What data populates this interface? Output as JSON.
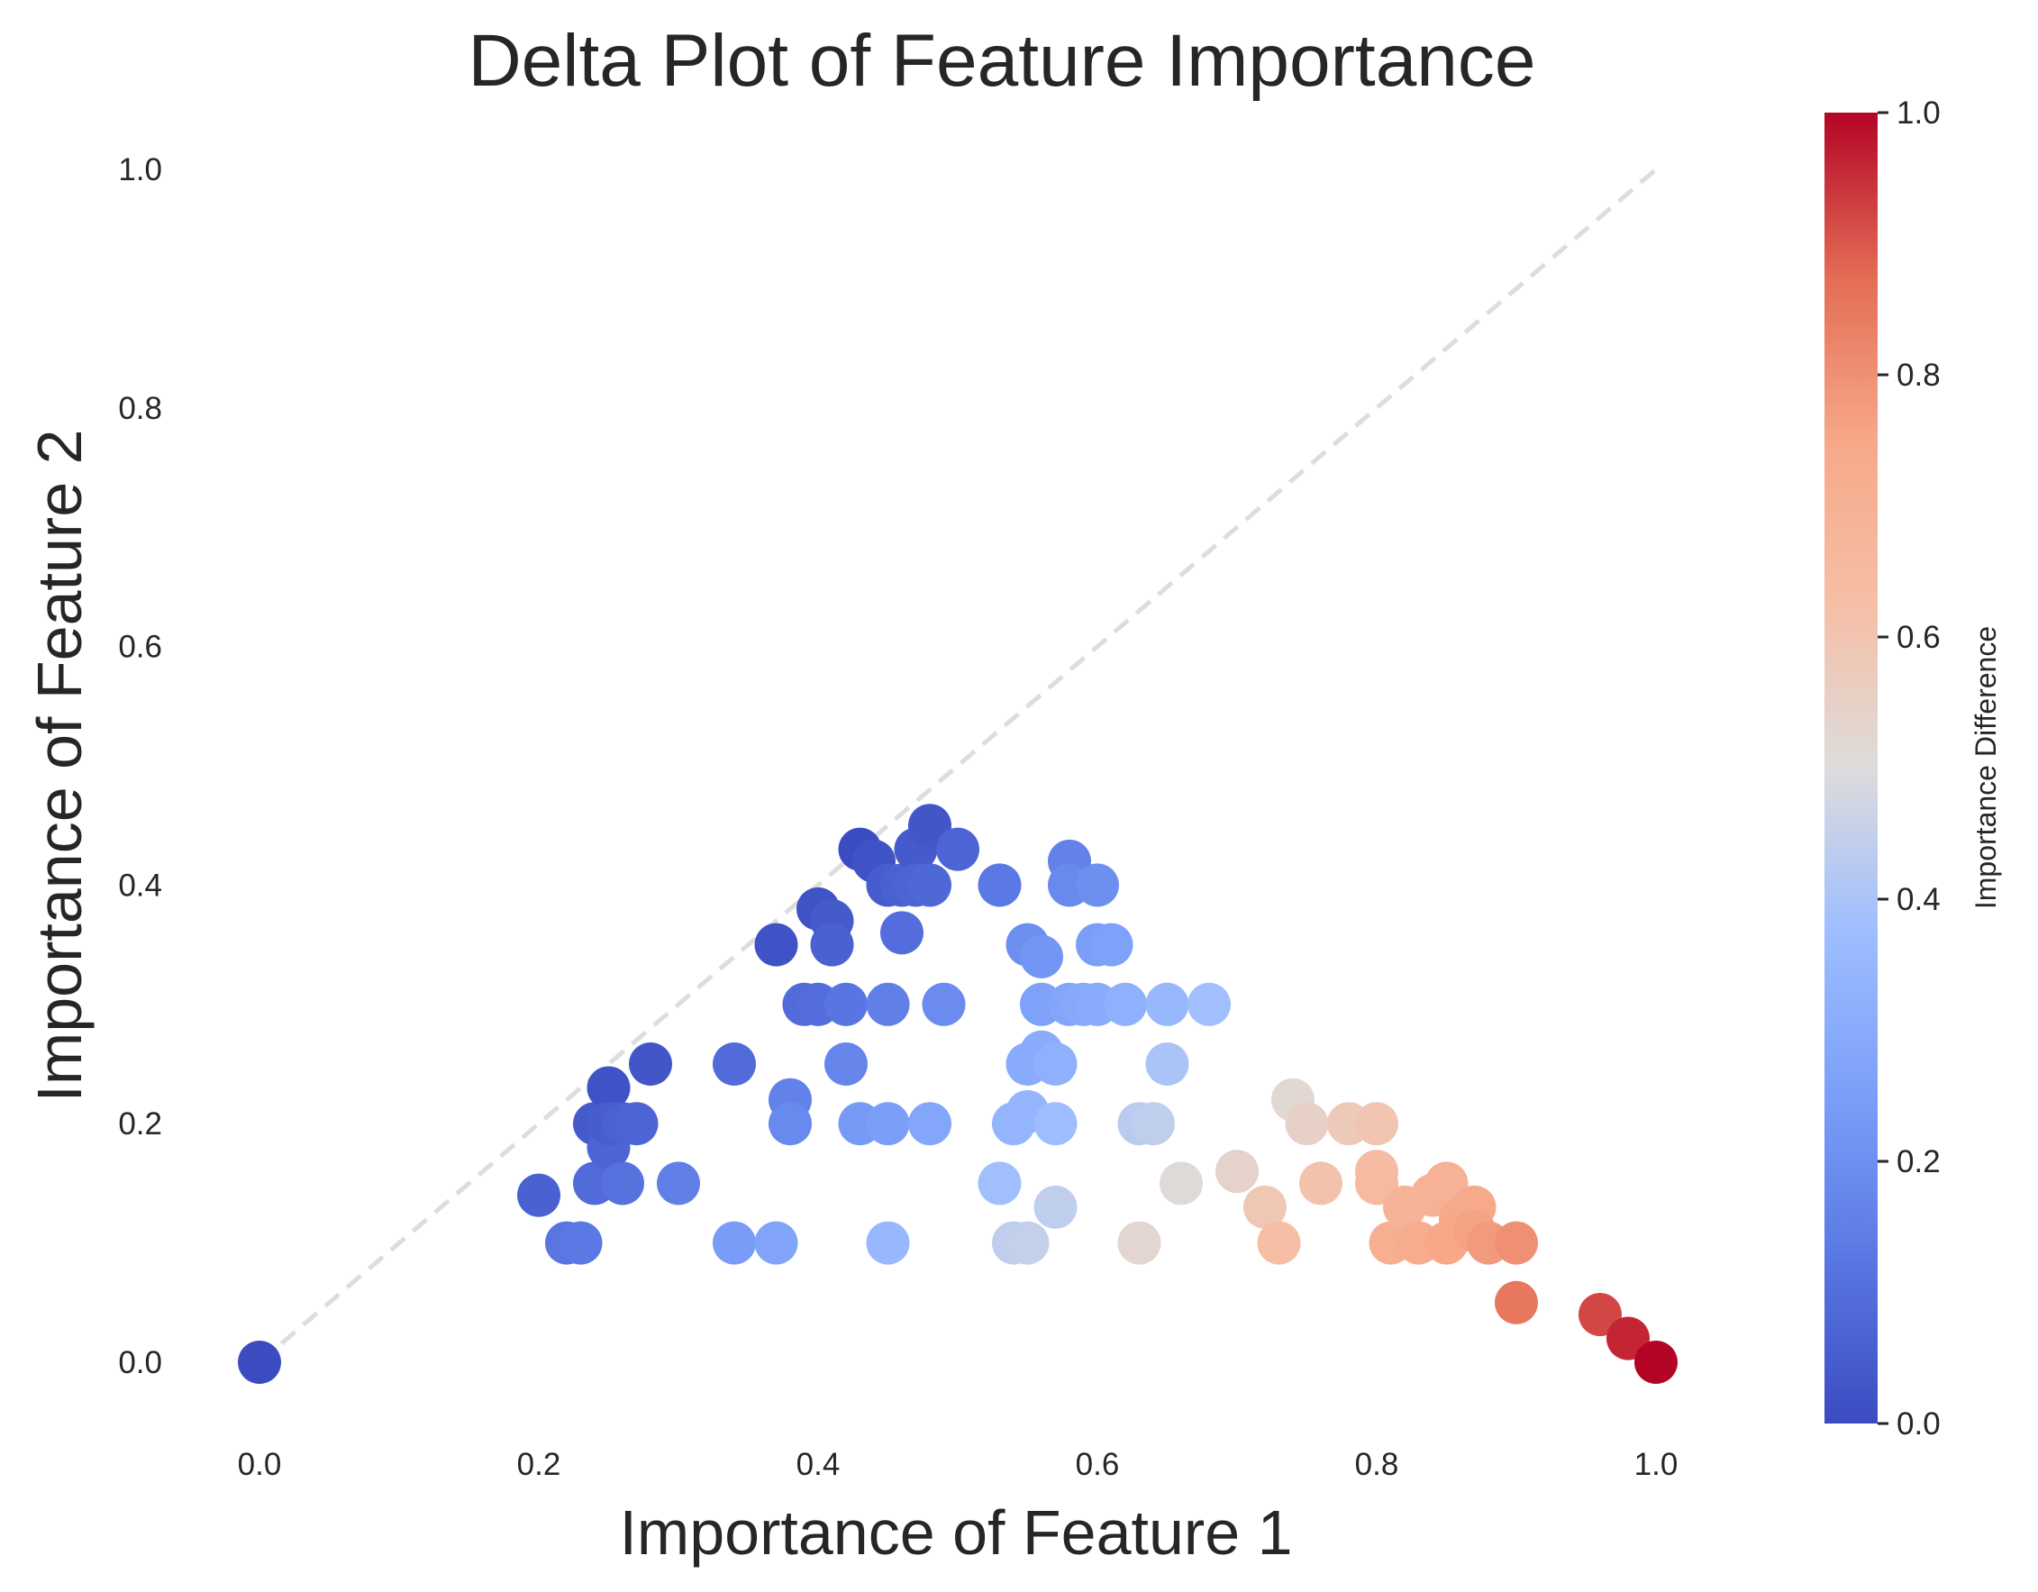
{
  "chart_data": {
    "type": "scatter",
    "title": "Delta Plot of Feature Importance",
    "xlabel": "Importance of Feature 1",
    "ylabel": "Importance of Feature 2",
    "xlim": [
      -0.05,
      1.05
    ],
    "ylim": [
      -0.05,
      1.05
    ],
    "xticks": [
      "0.0",
      "0.2",
      "0.4",
      "0.6",
      "0.8",
      "1.0"
    ],
    "yticks": [
      "0.0",
      "0.2",
      "0.4",
      "0.6",
      "0.8",
      "1.0"
    ],
    "grid": false,
    "reference_line": {
      "from": [
        0,
        0
      ],
      "to": [
        1,
        1
      ],
      "style": "dashed",
      "color": "#dddddd"
    },
    "colorbar": {
      "label": "Importance Difference",
      "colormap": "coolwarm",
      "range": [
        0,
        1
      ],
      "ticks": [
        "0.0",
        "0.2",
        "0.4",
        "0.6",
        "0.8",
        "1.0"
      ]
    },
    "x": [
      0.0,
      0.2,
      0.22,
      0.23,
      0.24,
      0.24,
      0.25,
      0.25,
      0.25,
      0.26,
      0.26,
      0.27,
      0.28,
      0.3,
      0.34,
      0.34,
      0.37,
      0.37,
      0.38,
      0.38,
      0.39,
      0.4,
      0.4,
      0.41,
      0.41,
      0.42,
      0.42,
      0.43,
      0.43,
      0.44,
      0.45,
      0.45,
      0.45,
      0.45,
      0.46,
      0.46,
      0.47,
      0.47,
      0.48,
      0.48,
      0.48,
      0.49,
      0.5,
      0.53,
      0.53,
      0.54,
      0.54,
      0.55,
      0.55,
      0.55,
      0.55,
      0.56,
      0.56,
      0.56,
      0.57,
      0.57,
      0.57,
      0.58,
      0.58,
      0.58,
      0.59,
      0.6,
      0.6,
      0.6,
      0.61,
      0.62,
      0.63,
      0.63,
      0.64,
      0.65,
      0.65,
      0.66,
      0.68,
      0.7,
      0.72,
      0.73,
      0.74,
      0.75,
      0.76,
      0.78,
      0.8,
      0.8,
      0.8,
      0.81,
      0.82,
      0.83,
      0.84,
      0.85,
      0.85,
      0.86,
      0.86,
      0.87,
      0.87,
      0.88,
      0.9,
      0.9,
      0.96,
      0.98,
      1.0
    ],
    "y": [
      0.0,
      0.14,
      0.1,
      0.1,
      0.15,
      0.2,
      0.23,
      0.18,
      0.2,
      0.15,
      0.2,
      0.2,
      0.25,
      0.15,
      0.25,
      0.1,
      0.35,
      0.1,
      0.22,
      0.2,
      0.3,
      0.38,
      0.3,
      0.37,
      0.35,
      0.3,
      0.25,
      0.43,
      0.2,
      0.42,
      0.4,
      0.3,
      0.2,
      0.1,
      0.4,
      0.36,
      0.43,
      0.4,
      0.45,
      0.4,
      0.2,
      0.3,
      0.43,
      0.4,
      0.15,
      0.2,
      0.1,
      0.35,
      0.25,
      0.21,
      0.1,
      0.34,
      0.3,
      0.26,
      0.25,
      0.2,
      0.13,
      0.42,
      0.4,
      0.3,
      0.3,
      0.4,
      0.35,
      0.3,
      0.35,
      0.3,
      0.2,
      0.1,
      0.2,
      0.3,
      0.25,
      0.15,
      0.3,
      0.16,
      0.13,
      0.1,
      0.22,
      0.2,
      0.15,
      0.2,
      0.2,
      0.16,
      0.15,
      0.1,
      0.13,
      0.1,
      0.14,
      0.15,
      0.1,
      0.12,
      0.11,
      0.13,
      0.11,
      0.1,
      0.1,
      0.05,
      0.04,
      0.02,
      0.0
    ]
  }
}
